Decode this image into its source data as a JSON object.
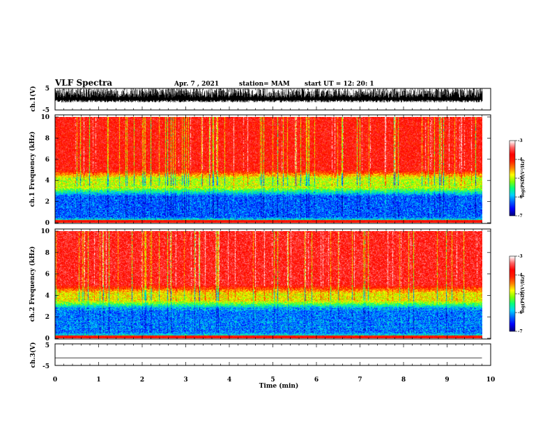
{
  "header": {
    "title": "VLF Spectra",
    "date": "Apr. 7 , 2021",
    "station": "station= MAM",
    "start": "start UT = 12: 20: 1"
  },
  "colors": {
    "colormap": [
      "#000080",
      "#0000ff",
      "#0060ff",
      "#00d0ff",
      "#00ff80",
      "#80ff00",
      "#ffff00",
      "#ff8000",
      "#ff2000",
      "#ff0000",
      "#ff6060",
      "#ffffff"
    ],
    "trace": "#000000"
  },
  "chart_data": [
    {
      "type": "line",
      "panel": "ch1-waveform",
      "ylabel": "ch.1(V)",
      "ylim": [
        -5,
        5
      ],
      "ytick_labels": [
        "-5",
        "5"
      ],
      "xlim": [
        0,
        10
      ],
      "description_values": {
        "amplitude_range_V": [
          -1.5,
          5
        ]
      }
    },
    {
      "type": "heatmap",
      "panel": "ch1-spectrogram",
      "ylabel": "ch.1 Frequency (kHz)",
      "ylim": [
        0,
        10
      ],
      "ytick_labels": [
        "0",
        "2",
        "4",
        "6",
        "8",
        "10"
      ],
      "xlim": [
        0,
        9.8
      ],
      "colorbar": {
        "label": "log(PSD)(V²/Hz)",
        "range": [
          -7,
          -3
        ],
        "tick_labels": [
          "-3",
          "-4",
          "-5",
          "-6",
          "-7"
        ]
      },
      "bands": [
        {
          "f_range_kHz": [
            0,
            0.5
          ],
          "log_psd": -4.5
        },
        {
          "f_range_kHz": [
            0.5,
            3.3
          ],
          "log_psd": -6.3
        },
        {
          "f_range_kHz": [
            3.3,
            5
          ],
          "log_psd": -5.0
        },
        {
          "f_range_kHz": [
            5,
            10
          ],
          "log_psd": -3.8
        }
      ]
    },
    {
      "type": "heatmap",
      "panel": "ch2-spectrogram",
      "ylabel": "ch.2 Frequency (kHz)",
      "ylim": [
        0,
        10
      ],
      "ytick_labels": [
        "0",
        "2",
        "4",
        "6",
        "8",
        "10"
      ],
      "xlim": [
        0,
        9.8
      ],
      "colorbar": {
        "label": "log(PSD)(V²/Hz)",
        "range": [
          -7,
          -3
        ],
        "tick_labels": [
          "-3",
          "-4",
          "-5",
          "-6",
          "-7"
        ]
      },
      "bands": [
        {
          "f_range_kHz": [
            0,
            0.5
          ],
          "log_psd": -4.8
        },
        {
          "f_range_kHz": [
            0.5,
            3.5
          ],
          "log_psd": -6.2
        },
        {
          "f_range_kHz": [
            3.5,
            5
          ],
          "log_psd": -4.8
        },
        {
          "f_range_kHz": [
            5,
            10
          ],
          "log_psd": -3.7
        }
      ]
    },
    {
      "type": "line",
      "panel": "ch3-waveform",
      "ylabel": "ch.3(V)",
      "ylim": [
        -5,
        5
      ],
      "ytick_labels": [
        "-5",
        "5"
      ],
      "xlim": [
        0,
        10
      ],
      "x": [
        0,
        9.8
      ],
      "y": [
        -1.5,
        -1.5
      ]
    }
  ],
  "xaxis": {
    "label": "Time (min)",
    "tick_labels": [
      "0",
      "1",
      "2",
      "3",
      "4",
      "5",
      "6",
      "7",
      "8",
      "9",
      "10"
    ],
    "range": [
      0,
      10
    ]
  }
}
